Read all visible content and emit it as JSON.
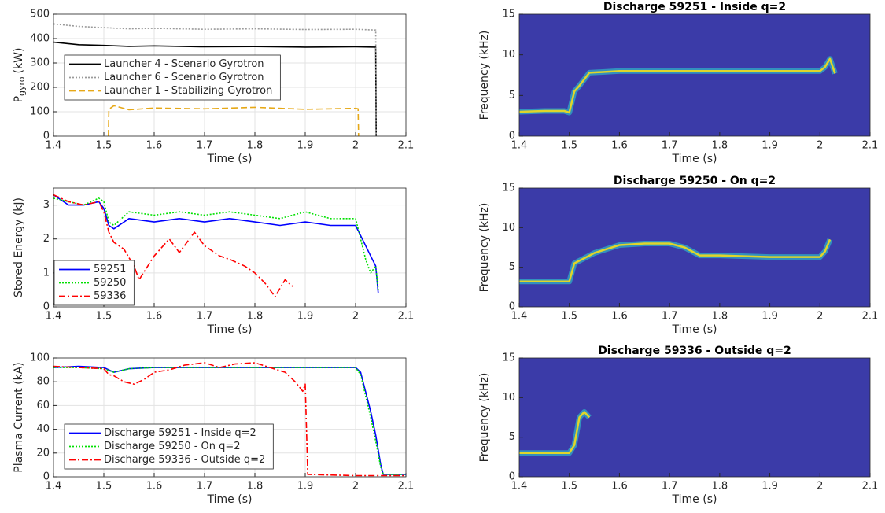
{
  "chart_data": [
    {
      "type": "line",
      "ylabel": "P",
      "ylabel_sub": "gyro",
      "ylabel_unit": "(kW)",
      "xlabel": "Time (s)",
      "xlim": [
        1.4,
        2.1
      ],
      "xticks": [
        1.4,
        1.5,
        1.6,
        1.7,
        1.8,
        1.9,
        2,
        2.1
      ],
      "ylim": [
        0,
        500
      ],
      "yticks": [
        0,
        100,
        200,
        300,
        400,
        500
      ],
      "grid": true,
      "legend": "upper left",
      "series": [
        {
          "name": "Launcher 4 - Scenario Gyrotron",
          "color": "#000000",
          "dash": "solid",
          "x": [
            1.4,
            1.45,
            1.5,
            1.55,
            1.6,
            1.7,
            1.8,
            1.9,
            2.0,
            2.04,
            2.041
          ],
          "values": [
            385,
            375,
            372,
            368,
            370,
            366,
            367,
            365,
            366,
            365,
            0
          ]
        },
        {
          "name": "Launcher 6 - Scenario Gyrotron",
          "color": "#9a9a9a",
          "dash": "dotted",
          "x": [
            1.4,
            1.45,
            1.5,
            1.55,
            1.6,
            1.7,
            1.8,
            1.9,
            2.0,
            2.04,
            2.041
          ],
          "values": [
            460,
            450,
            445,
            440,
            442,
            438,
            440,
            437,
            438,
            435,
            0
          ]
        },
        {
          "name": "Launcher 1 - Stabilizing Gyrotron",
          "color": "#e6a817",
          "dash": "dash",
          "x": [
            1.509,
            1.51,
            1.52,
            1.55,
            1.6,
            1.7,
            1.8,
            1.9,
            2.0,
            2.005,
            2.006
          ],
          "values": [
            0,
            110,
            125,
            108,
            115,
            112,
            118,
            110,
            114,
            112,
            0
          ]
        }
      ]
    },
    {
      "type": "line",
      "ylabel": "Stored Energy (kJ)",
      "xlabel": "Time (s)",
      "xlim": [
        1.4,
        2.1
      ],
      "xticks": [
        1.4,
        1.5,
        1.6,
        1.7,
        1.8,
        1.9,
        2,
        2.1
      ],
      "ylim": [
        0,
        3.5
      ],
      "yticks": [
        0,
        1,
        2,
        3
      ],
      "grid": true,
      "legend": "lower left",
      "series": [
        {
          "name": "59251",
          "color": "#0000ff",
          "dash": "solid",
          "x": [
            1.4,
            1.43,
            1.46,
            1.49,
            1.5,
            1.51,
            1.52,
            1.55,
            1.6,
            1.65,
            1.7,
            1.75,
            1.8,
            1.85,
            1.9,
            1.95,
            2.0,
            2.02,
            2.03,
            2.04,
            2.045
          ],
          "values": [
            3.3,
            3.0,
            3.0,
            3.1,
            2.9,
            2.4,
            2.3,
            2.6,
            2.5,
            2.6,
            2.5,
            2.6,
            2.5,
            2.4,
            2.5,
            2.4,
            2.4,
            1.8,
            1.5,
            1.2,
            0.4
          ]
        },
        {
          "name": "59250",
          "color": "#00e000",
          "dash": "dotted",
          "x": [
            1.4,
            1.43,
            1.46,
            1.49,
            1.5,
            1.51,
            1.52,
            1.55,
            1.6,
            1.65,
            1.7,
            1.75,
            1.8,
            1.85,
            1.9,
            1.95,
            2.0,
            2.02,
            2.03,
            2.04,
            2.045
          ],
          "values": [
            3.2,
            3.1,
            3.0,
            3.2,
            3.1,
            2.5,
            2.4,
            2.8,
            2.7,
            2.8,
            2.7,
            2.8,
            2.7,
            2.6,
            2.8,
            2.6,
            2.6,
            1.4,
            1.0,
            1.2,
            0.5
          ]
        },
        {
          "name": "59336",
          "color": "#ff0000",
          "dash": "dashdot",
          "x": [
            1.4,
            1.43,
            1.46,
            1.49,
            1.5,
            1.51,
            1.52,
            1.54,
            1.56,
            1.57,
            1.6,
            1.63,
            1.65,
            1.68,
            1.7,
            1.73,
            1.75,
            1.78,
            1.8,
            1.82,
            1.84,
            1.86,
            1.875
          ],
          "values": [
            3.3,
            3.1,
            3.0,
            3.1,
            2.8,
            2.2,
            1.9,
            1.7,
            1.2,
            0.8,
            1.5,
            2.0,
            1.6,
            2.2,
            1.8,
            1.5,
            1.4,
            1.2,
            1.0,
            0.7,
            0.3,
            0.8,
            0.6
          ]
        }
      ]
    },
    {
      "type": "line",
      "ylabel": "Plasma Current (kA)",
      "xlabel": "Time (s)",
      "xlim": [
        1.4,
        2.1
      ],
      "xticks": [
        1.4,
        1.5,
        1.6,
        1.7,
        1.8,
        1.9,
        2,
        2.1
      ],
      "ylim": [
        0,
        100
      ],
      "yticks": [
        0,
        20,
        40,
        60,
        80,
        100
      ],
      "grid": true,
      "legend": "lower left",
      "series": [
        {
          "name": "Discharge 59251 - Inside q=2",
          "color": "#0000ff",
          "dash": "solid",
          "x": [
            1.4,
            1.45,
            1.5,
            1.52,
            1.55,
            1.6,
            1.7,
            1.8,
            1.9,
            2.0,
            2.01,
            2.03,
            2.04,
            2.05,
            2.055,
            2.1
          ],
          "values": [
            92,
            93,
            92,
            88,
            91,
            92,
            92,
            92,
            92,
            92,
            88,
            55,
            35,
            10,
            2,
            2
          ]
        },
        {
          "name": "Discharge 59250 - On q=2",
          "color": "#00e000",
          "dash": "dotted",
          "x": [
            1.4,
            1.45,
            1.5,
            1.52,
            1.55,
            1.6,
            1.7,
            1.8,
            1.9,
            2.0,
            2.01,
            2.03,
            2.04,
            2.05,
            2.055,
            2.1
          ],
          "values": [
            92,
            92,
            91,
            88,
            91,
            92,
            92,
            92,
            92,
            92,
            86,
            50,
            30,
            8,
            2,
            2
          ]
        },
        {
          "name": "Discharge 59336 - Outside q=2",
          "color": "#ff0000",
          "dash": "dashdot",
          "x": [
            1.4,
            1.45,
            1.5,
            1.51,
            1.52,
            1.54,
            1.56,
            1.58,
            1.6,
            1.63,
            1.66,
            1.7,
            1.73,
            1.76,
            1.8,
            1.83,
            1.86,
            1.88,
            1.895,
            1.9,
            1.905,
            2.0,
            2.1
          ],
          "values": [
            93,
            92,
            91,
            86,
            85,
            80,
            78,
            82,
            88,
            90,
            94,
            96,
            92,
            95,
            96,
            92,
            88,
            80,
            72,
            78,
            2,
            1,
            1
          ]
        }
      ]
    },
    {
      "type": "spectrogram",
      "title": "Discharge 59251 - Inside q=2",
      "ylabel": "Frequency (kHz)",
      "xlabel": "Time (s)",
      "xlim": [
        1.4,
        2.1
      ],
      "xticks": [
        1.4,
        1.5,
        1.6,
        1.7,
        1.8,
        1.9,
        2,
        2.1
      ],
      "ylim": [
        0,
        15
      ],
      "yticks": [
        0,
        5,
        10,
        15
      ],
      "background": "#3b3ba8",
      "color": "#e0d52a",
      "x": [
        1.4,
        1.45,
        1.49,
        1.5,
        1.51,
        1.52,
        1.54,
        1.6,
        1.7,
        1.8,
        1.9,
        2.0,
        2.01,
        2.02,
        2.03
      ],
      "values": [
        3,
        3.1,
        3.1,
        2.9,
        5.5,
        6.2,
        7.8,
        8,
        8,
        8,
        8,
        8,
        8.5,
        9.5,
        7.7
      ]
    },
    {
      "type": "spectrogram",
      "title": "Discharge 59250 - On q=2",
      "ylabel": "Frequency (kHz)",
      "xlabel": "Time (s)",
      "xlim": [
        1.4,
        2.1
      ],
      "xticks": [
        1.4,
        1.5,
        1.6,
        1.7,
        1.8,
        1.9,
        2,
        2.1
      ],
      "ylim": [
        0,
        15
      ],
      "yticks": [
        0,
        5,
        10,
        15
      ],
      "background": "#3b3ba8",
      "color": "#e0d52a",
      "x": [
        1.4,
        1.45,
        1.5,
        1.51,
        1.55,
        1.6,
        1.65,
        1.7,
        1.73,
        1.76,
        1.8,
        1.9,
        2.0,
        2.01,
        2.02
      ],
      "values": [
        3.2,
        3.2,
        3.2,
        5.5,
        6.8,
        7.8,
        8,
        8,
        7.5,
        6.5,
        6.5,
        6.3,
        6.3,
        7,
        8.5
      ]
    },
    {
      "type": "spectrogram",
      "title": "Discharge 59336 - Outside q=2",
      "ylabel": "Frequency (kHz)",
      "xlabel": "Time (s)",
      "xlim": [
        1.4,
        2.1
      ],
      "xticks": [
        1.4,
        1.5,
        1.6,
        1.7,
        1.8,
        1.9,
        2,
        2.1
      ],
      "ylim": [
        0,
        15
      ],
      "yticks": [
        0,
        5,
        10,
        15
      ],
      "background": "#3b3ba8",
      "color": "#e0d52a",
      "x": [
        1.4,
        1.45,
        1.5,
        1.51,
        1.52,
        1.53,
        1.54
      ],
      "values": [
        3,
        3,
        3,
        4,
        7.5,
        8.2,
        7.5
      ]
    }
  ]
}
